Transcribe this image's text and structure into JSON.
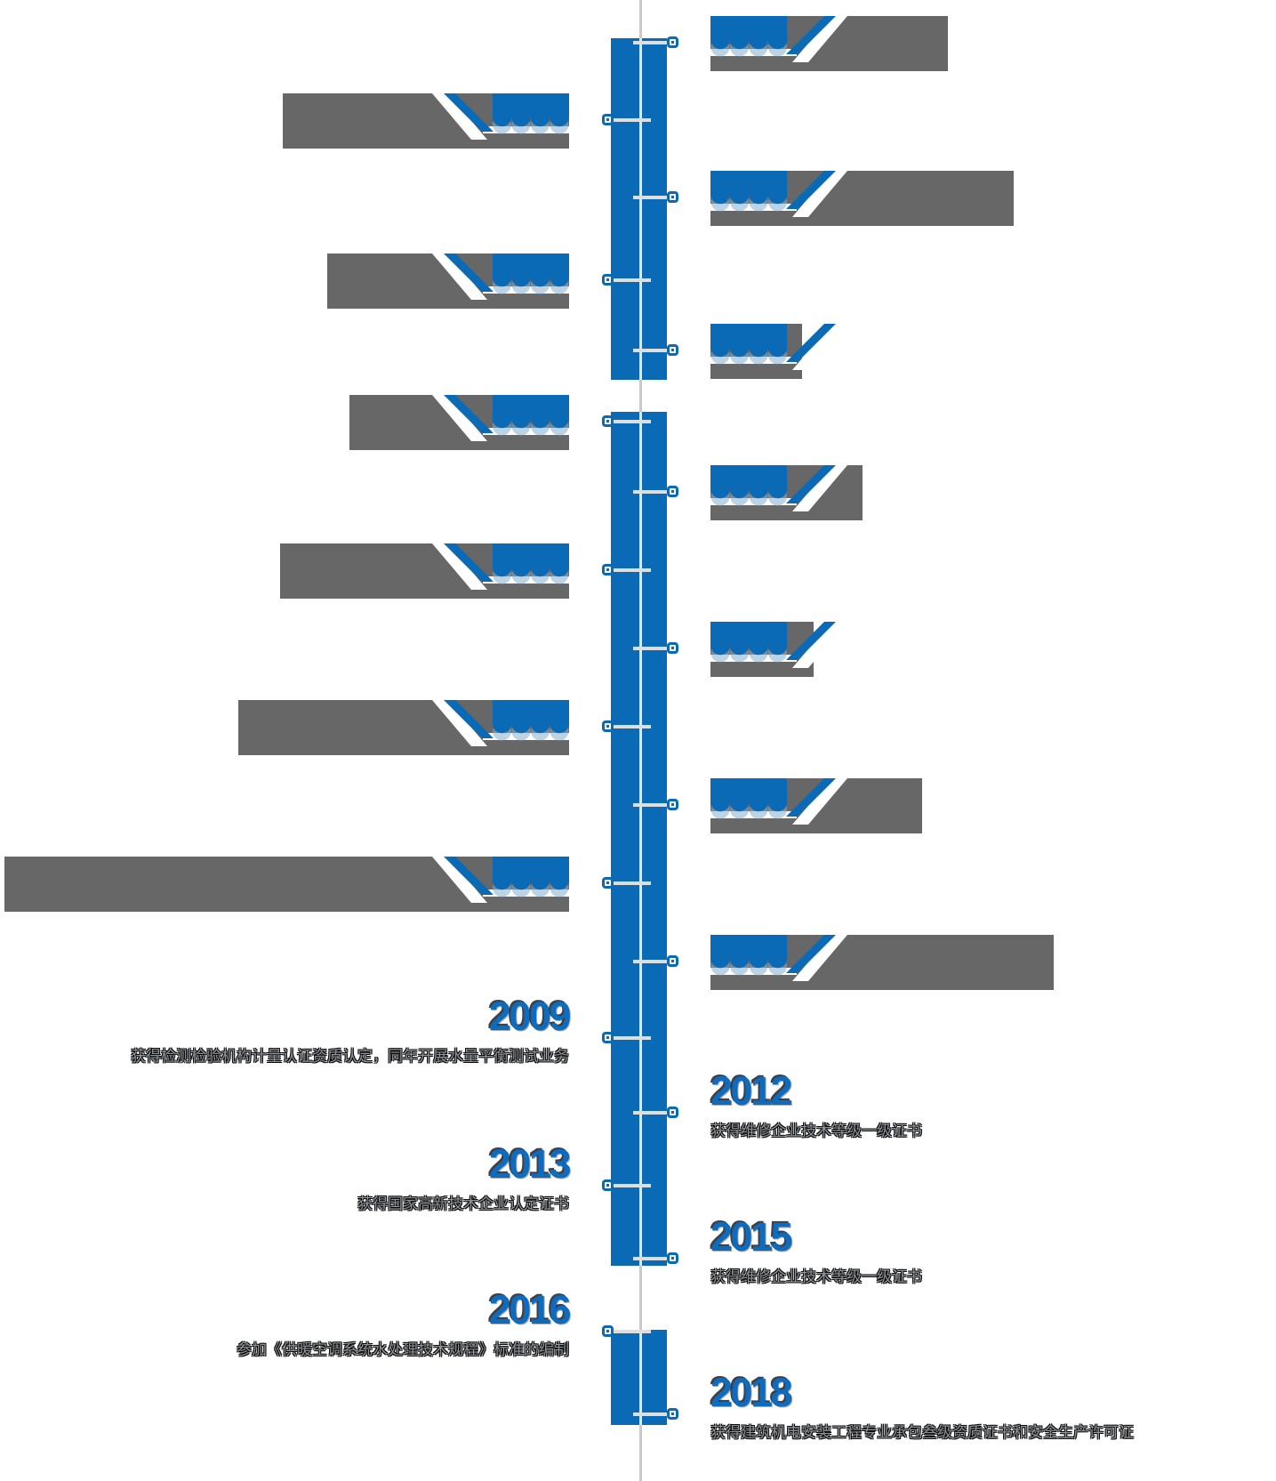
{
  "page": {
    "background_color": "#ffffff",
    "kind": "company-history-vertical-timeline"
  },
  "timeline": {
    "colors": {
      "accent_blue": "#0b6ab5",
      "year_text_blue": "#0d6cbe",
      "block_gray": "#676767",
      "axis_gray": "#c9c9c9",
      "tick_gray": "#dedede",
      "description_gray": "#8f949a"
    },
    "node_icon": "square-dot-node",
    "entries": [
      {
        "id": 1,
        "side": "right",
        "style": "block",
        "year": null,
        "description": null,
        "obscured": true
      },
      {
        "id": 2,
        "side": "left",
        "style": "block",
        "year": null,
        "description": null,
        "obscured": true
      },
      {
        "id": 3,
        "side": "right",
        "style": "block",
        "year": null,
        "description": null,
        "obscured": true
      },
      {
        "id": 4,
        "side": "left",
        "style": "block",
        "year": null,
        "description": null,
        "obscured": true
      },
      {
        "id": 5,
        "side": "right",
        "style": "block",
        "year": null,
        "description": null,
        "obscured": true
      },
      {
        "id": 6,
        "side": "left",
        "style": "block",
        "year": null,
        "description": null,
        "obscured": true
      },
      {
        "id": 7,
        "side": "right",
        "style": "block",
        "year": null,
        "description": null,
        "obscured": true
      },
      {
        "id": 8,
        "side": "left",
        "style": "block",
        "year": null,
        "description": null,
        "obscured": true
      },
      {
        "id": 9,
        "side": "right",
        "style": "block",
        "year": null,
        "description": null,
        "obscured": true
      },
      {
        "id": 10,
        "side": "left",
        "style": "block",
        "year": null,
        "description": null,
        "obscured": true
      },
      {
        "id": 11,
        "side": "right",
        "style": "block",
        "year": null,
        "description": null,
        "obscured": true
      },
      {
        "id": 12,
        "side": "left",
        "style": "block",
        "year": null,
        "description": null,
        "obscured": true
      },
      {
        "id": 13,
        "side": "right",
        "style": "block",
        "year": null,
        "description": null,
        "obscured": true
      },
      {
        "id": 14,
        "side": "left",
        "style": "text",
        "year": "2009",
        "description": "获得检测检验机构计量认证资质认定，同年开展水量平衡测试业务"
      },
      {
        "id": 15,
        "side": "right",
        "style": "text",
        "year": "2012",
        "description": "获得维修企业技术等级一级证书"
      },
      {
        "id": 16,
        "side": "left",
        "style": "text",
        "year": "2013",
        "description": "获得国家高新技术企业认定证书"
      },
      {
        "id": 17,
        "side": "right",
        "style": "text",
        "year": "2015",
        "description": "获得维修企业技术等级一级证书"
      },
      {
        "id": 18,
        "side": "left",
        "style": "text",
        "year": "2016",
        "description": "参加《供暖空调系统水处理技术规程》标准的编制"
      },
      {
        "id": 19,
        "side": "right",
        "style": "text",
        "year": "2018",
        "description": "获得建筑机电安装工程专业承包叁级资质证书和安全生产许可证"
      }
    ]
  }
}
